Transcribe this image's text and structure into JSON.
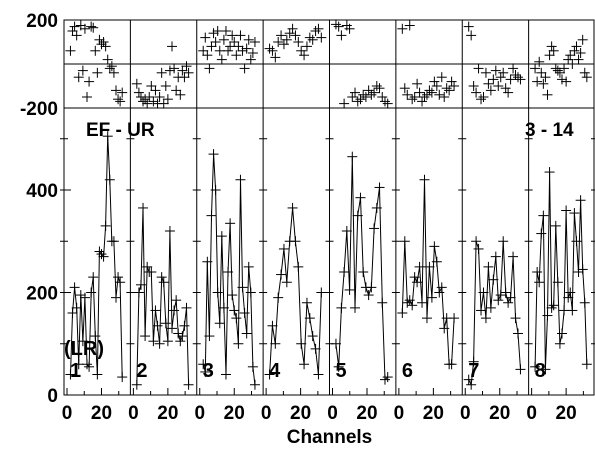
{
  "chart_data": {
    "type": "line",
    "title": "EF - UR",
    "corner_label": "3 - 14",
    "side_label": "(LR)",
    "xlabel": "Channels",
    "x_ticks": [
      0,
      20
    ],
    "x_range": [
      0,
      35
    ],
    "top_panel": {
      "ylim": [
        -200,
        200
      ],
      "y_ticks": [
        "200",
        "-200"
      ],
      "reference_line": 0
    },
    "main_panel": {
      "ylim": [
        0,
        560
      ],
      "y_ticks": [
        "400",
        "200",
        "0"
      ]
    },
    "color": "#000000",
    "panels": [
      {
        "label": "1",
        "values": [
          40,
          160,
          210,
          170,
          60,
          195,
          105,
          190,
          60,
          55,
          200,
          230,
          115,
          40,
          280,
          275,
          270,
          330,
          505,
          420,
          300,
          300,
          190,
          230,
          220,
          35
        ],
        "phase": [
          60,
          150,
          170,
          130,
          -60,
          175,
          -30,
          160,
          -150,
          -80,
          170,
          165,
          60,
          -40,
          110,
          90,
          100,
          80,
          20,
          -20,
          -10,
          -40,
          -120,
          -160,
          -170,
          -130
        ]
      },
      {
        "label": "2",
        "values": [
          20,
          200,
          215,
          365,
          115,
          250,
          240,
          240,
          105,
          165,
          135,
          100,
          230,
          220,
          140,
          105,
          320,
          130,
          165,
          185,
          120,
          105,
          115,
          135,
          170,
          20
        ],
        "phase": [
          -90,
          -130,
          -150,
          -170,
          -160,
          -180,
          -150,
          -100,
          -170,
          -120,
          -180,
          -150,
          -40,
          -180,
          -100,
          -160,
          -30,
          80,
          -20,
          -120,
          -60,
          -140,
          -30,
          -60,
          -10,
          -40
        ]
      },
      {
        "label": "3",
        "values": [
          60,
          45,
          260,
          115,
          350,
          470,
          400,
          200,
          140,
          310,
          170,
          40,
          240,
          335,
          195,
          165,
          150,
          100,
          420,
          210,
          160,
          120,
          250,
          200,
          55,
          20
        ],
        "phase": [
          60,
          120,
          40,
          -20,
          80,
          140,
          100,
          150,
          60,
          20,
          110,
          150,
          60,
          80,
          130,
          100,
          40,
          80,
          130,
          60,
          -20,
          70,
          110,
          20,
          50,
          100
        ],
        "points_at_right": true
      },
      {
        "label": "4",
        "values": [
          40,
          135,
          100,
          190,
          235,
          285,
          220,
          300,
          365,
          300,
          250,
          100,
          60,
          180,
          150,
          115,
          90,
          40,
          200
        ],
        "phase": [
          70,
          60,
          30,
          100,
          130,
          90,
          110,
          140,
          160,
          130,
          100,
          60,
          40,
          80,
          120,
          110,
          150,
          160,
          120
        ],
        "points_at_right": true
      },
      {
        "label": "5",
        "values": [
          100,
          55,
          170,
          240,
          320,
          205,
          465,
          170,
          350,
          385,
          240,
          210,
          195,
          210,
          325,
          365,
          405,
          180,
          30,
          35
        ],
        "phase": [
          180,
          170,
          130,
          -180,
          175,
          160,
          -150,
          -130,
          -170,
          -160,
          -140,
          -150,
          -120,
          -140,
          -130,
          -100,
          -110,
          -150,
          -170,
          -180
        ],
        "points_at_right": true
      },
      {
        "label": "6",
        "values": [
          160,
          300,
          180,
          185,
          175,
          230,
          220,
          250,
          180,
          420,
          150,
          250,
          190,
          290,
          260,
          200,
          210,
          130,
          150,
          60,
          60,
          150
        ],
        "phase": [
          160,
          -110,
          -140,
          175,
          -160,
          -150,
          -90,
          -130,
          -170,
          -150,
          -140,
          -120,
          -130,
          -80,
          -100,
          -140,
          -60,
          -150,
          -110,
          -120,
          -80,
          -100
        ]
      },
      {
        "label": "7",
        "values": [
          30,
          20,
          65,
          300,
          285,
          165,
          200,
          150,
          250,
          170,
          225,
          270,
          185,
          195,
          300,
          200,
          180,
          190,
          270,
          150,
          120,
          50
        ],
        "phase": [
          170,
          130,
          -100,
          -130,
          -20,
          -160,
          -150,
          -40,
          -90,
          -120,
          -70,
          -30,
          -100,
          -60,
          -40,
          -110,
          -130,
          -70,
          -20,
          -50,
          -60,
          -70
        ]
      },
      {
        "label": "8",
        "values": [
          55,
          240,
          220,
          315,
          350,
          50,
          155,
          435,
          170,
          175,
          330,
          220,
          100,
          120,
          165,
          360,
          190,
          200,
          165,
          355,
          300,
          240,
          380,
          245,
          180,
          60
        ],
        "phase": [
          -20,
          -80,
          10,
          -40,
          -90,
          -60,
          -140,
          40,
          80,
          60,
          -20,
          -30,
          -40,
          -70,
          -20,
          -80,
          20,
          40,
          0,
          60,
          80,
          20,
          50,
          110,
          -40,
          -60
        ]
      }
    ]
  }
}
